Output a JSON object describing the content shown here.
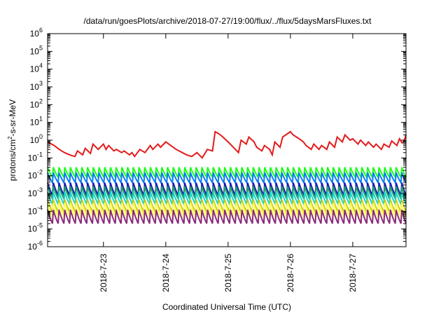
{
  "chart_data": {
    "type": "line",
    "title": "/data/run/goesPlots/archive/2018-07-27/19:00/flux/../flux/5daysMarsFluxes.txt",
    "xlabel": "Coordinated Universal Time (UTC)",
    "ylabel": {
      "base": "protons/cm",
      "sup": "2",
      "rest": "-s-sr-MeV"
    },
    "yscale": "log",
    "ylim": [
      1e-06,
      1000000.0
    ],
    "y_ticks": [
      {
        "value": 1e-06,
        "base": "10",
        "exp": "-6"
      },
      {
        "value": 1e-05,
        "base": "10",
        "exp": "-5"
      },
      {
        "value": 0.0001,
        "base": "10",
        "exp": "-4"
      },
      {
        "value": 0.001,
        "base": "10",
        "exp": "-3"
      },
      {
        "value": 0.01,
        "base": "10",
        "exp": "-2"
      },
      {
        "value": 0.1,
        "base": "10",
        "exp": "-1"
      },
      {
        "value": 1,
        "base": "10",
        "exp": "0"
      },
      {
        "value": 10,
        "base": "10",
        "exp": "1"
      },
      {
        "value": 100,
        "base": "10",
        "exp": "2"
      },
      {
        "value": 1000,
        "base": "10",
        "exp": "3"
      },
      {
        "value": 10000,
        "base": "10",
        "exp": "4"
      },
      {
        "value": 100000,
        "base": "10",
        "exp": "5"
      },
      {
        "value": 1000000,
        "base": "10",
        "exp": "6"
      }
    ],
    "xlim": [
      "2018-07-22T02:30",
      "2018-07-27T20:30"
    ],
    "x_ticks": [
      {
        "value": "2018-07-23T00:00",
        "label": "2018-7-23"
      },
      {
        "value": "2018-07-24T00:00",
        "label": "2018-7-24"
      },
      {
        "value": "2018-07-25T00:00",
        "label": "2018-7-25"
      },
      {
        "value": "2018-07-26T00:00",
        "label": "2018-7-26"
      },
      {
        "value": "2018-07-27T00:00",
        "label": "2018-7-27"
      }
    ],
    "grid": false,
    "legend": "none",
    "series": [
      {
        "color": "#e41a1c",
        "x": [
          "2018-07-22T02:30",
          "2018-07-22T05:00",
          "2018-07-22T07:00",
          "2018-07-22T09:00",
          "2018-07-22T11:00",
          "2018-07-22T13:00",
          "2018-07-22T14:00",
          "2018-07-22T16:00",
          "2018-07-22T17:00",
          "2018-07-22T19:00",
          "2018-07-22T20:00",
          "2018-07-22T22:00",
          "2018-07-23T00:00",
          "2018-07-23T01:00",
          "2018-07-23T02:00",
          "2018-07-23T04:00",
          "2018-07-23T05:00",
          "2018-07-23T07:00",
          "2018-07-23T08:00",
          "2018-07-23T10:00",
          "2018-07-23T11:00",
          "2018-07-23T12:00",
          "2018-07-23T14:00",
          "2018-07-23T16:00",
          "2018-07-23T18:00",
          "2018-07-23T19:00",
          "2018-07-23T21:00",
          "2018-07-23T22:00",
          "2018-07-24T00:00",
          "2018-07-24T04:00",
          "2018-07-24T08:00",
          "2018-07-24T10:00",
          "2018-07-24T12:00",
          "2018-07-24T14:00",
          "2018-07-24T16:00",
          "2018-07-24T18:00",
          "2018-07-24T19:00",
          "2018-07-24T20:00",
          "2018-07-24T21:00",
          "2018-07-24T22:00",
          "2018-07-25T00:00",
          "2018-07-25T02:00",
          "2018-07-25T04:00",
          "2018-07-25T05:00",
          "2018-07-25T07:00",
          "2018-07-25T08:00",
          "2018-07-25T10:00",
          "2018-07-25T11:00",
          "2018-07-25T13:00",
          "2018-07-25T14:00",
          "2018-07-25T16:00",
          "2018-07-25T17:00",
          "2018-07-25T18:00",
          "2018-07-25T20:00",
          "2018-07-25T21:00",
          "2018-07-26T00:00",
          "2018-07-26T01:00",
          "2018-07-26T03:00",
          "2018-07-26T05:00",
          "2018-07-26T06:00",
          "2018-07-26T08:00",
          "2018-07-26T09:00",
          "2018-07-26T11:00",
          "2018-07-26T12:00",
          "2018-07-26T14:00",
          "2018-07-26T15:00",
          "2018-07-26T17:00",
          "2018-07-26T18:00",
          "2018-07-26T20:00",
          "2018-07-26T21:00",
          "2018-07-26T23:00",
          "2018-07-27T00:00",
          "2018-07-27T02:00",
          "2018-07-27T03:00",
          "2018-07-27T05:00",
          "2018-07-27T06:00",
          "2018-07-27T08:00",
          "2018-07-27T09:00",
          "2018-07-27T11:00",
          "2018-07-27T12:00",
          "2018-07-27T14:00",
          "2018-07-27T15:00",
          "2018-07-27T17:00",
          "2018-07-27T18:00",
          "2018-07-27T19:00",
          "2018-07-27T19:45",
          "2018-07-27T20:30"
        ],
        "y": [
          0.8,
          0.5,
          0.3,
          0.2,
          0.15,
          0.12,
          0.25,
          0.15,
          0.35,
          0.18,
          0.6,
          0.3,
          0.6,
          0.3,
          0.5,
          0.25,
          0.3,
          0.2,
          0.25,
          0.15,
          0.2,
          0.12,
          0.3,
          0.2,
          0.5,
          0.3,
          0.6,
          0.4,
          0.8,
          0.3,
          0.15,
          0.12,
          0.2,
          0.1,
          0.3,
          0.25,
          3.0,
          2.5,
          2.0,
          1.5,
          0.8,
          0.4,
          0.2,
          1.0,
          0.6,
          1.5,
          0.8,
          0.4,
          0.25,
          0.5,
          0.3,
          0.15,
          0.8,
          0.4,
          1.5,
          3.0,
          2.0,
          1.3,
          0.8,
          0.5,
          0.3,
          0.6,
          0.3,
          0.5,
          0.3,
          0.8,
          0.4,
          1.5,
          0.8,
          2.0,
          1.0,
          1.2,
          0.6,
          1.0,
          0.5,
          0.8,
          0.4,
          0.6,
          0.3,
          0.6,
          0.4,
          0.9,
          0.5,
          1.2,
          0.7,
          0.9,
          2.0
        ]
      }
    ],
    "background_series": [
      {
        "color": "#1aff1a",
        "high": 0.03,
        "low": 0.008
      },
      {
        "color": "#0a7df5",
        "high": 0.015,
        "low": 0.004
      },
      {
        "color": "#1a1ab4",
        "high": 0.004,
        "low": 0.0008
      },
      {
        "color": "#1fa06a",
        "high": 0.0025,
        "low": 0.0005
      },
      {
        "color": "#17d6c4",
        "high": 0.0012,
        "low": 0.00025
      },
      {
        "color": "#c8c814",
        "high": 0.00045,
        "low": 9e-05
      },
      {
        "color": "#ffff55",
        "high": 0.0003,
        "low": 6e-05
      },
      {
        "color": "#ffffa0",
        "high": 0.00018,
        "low": 4e-05
      },
      {
        "color": "#8b2a7a",
        "high": 0.00012,
        "low": 2e-05
      }
    ],
    "background_pulse_hours": 2.2
  }
}
